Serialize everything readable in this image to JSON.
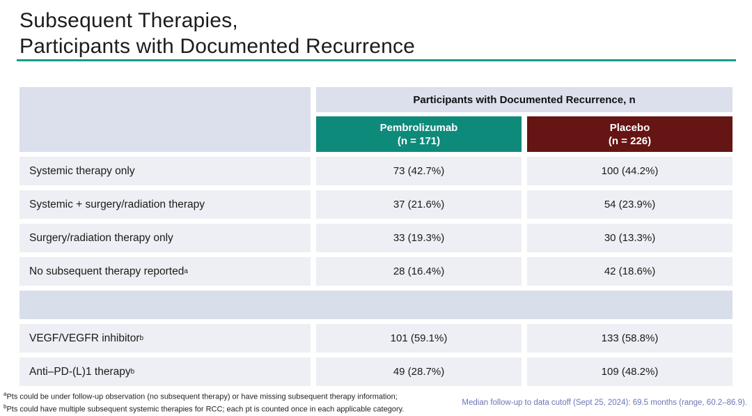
{
  "slide": {
    "title_line1": "Subsequent Therapies,",
    "title_line2": "Participants with Documented Recurrence"
  },
  "colors": {
    "title_rule_teal": "#179991",
    "pembrolizumab_teal": "#0e8a7b",
    "placebo_dark_red": "#651514",
    "header_band": "#dce0ed",
    "data_row_bg": "#edeff4",
    "spacer_row_bg": "#d9deeb",
    "median_note_blue": "#6a76b5"
  },
  "table": {
    "merged_header": "Participants with Documented Recurrence, n",
    "columns": [
      {
        "name": "Pembrolizumab",
        "n_label": "(n = 171)"
      },
      {
        "name": "Placebo",
        "n_label": "(n = 226)"
      }
    ],
    "rows": [
      {
        "label": "Systemic therapy only",
        "sup": "",
        "pembrolizumab": "73 (42.7%)",
        "placebo": "100 (44.2%)"
      },
      {
        "label": "Systemic + surgery/radiation therapy",
        "sup": "",
        "pembrolizumab": "37 (21.6%)",
        "placebo": "54 (23.9%)"
      },
      {
        "label": "Surgery/radiation therapy only",
        "sup": "",
        "pembrolizumab": "33 (19.3%)",
        "placebo": "30 (13.3%)"
      },
      {
        "label": "No subsequent therapy reported",
        "sup": "a",
        "pembrolizumab": "28 (16.4%)",
        "placebo": "42 (18.6%)"
      },
      {
        "label": "VEGF/VEGFR inhibitor",
        "sup": "b",
        "pembrolizumab": "101 (59.1%)",
        "placebo": "133 (58.8%)"
      },
      {
        "label": "Anti–PD-(L)1 therapy",
        "sup": "b",
        "pembrolizumab": "49 (28.7%)",
        "placebo": "109 (48.2%)"
      }
    ]
  },
  "footnotes": [
    {
      "sup": "a",
      "text": "Pts could be under follow-up observation (no subsequent therapy) or have missing subsequent therapy information;"
    },
    {
      "sup": "b",
      "text": "Pts could have multiple subsequent systemic therapies for RCC; each pt is counted once in each applicable category."
    }
  ],
  "median_note": "Median follow-up to data cutoff (Sept 25, 2024): 69.5 months (range, 60.2–86.9)."
}
